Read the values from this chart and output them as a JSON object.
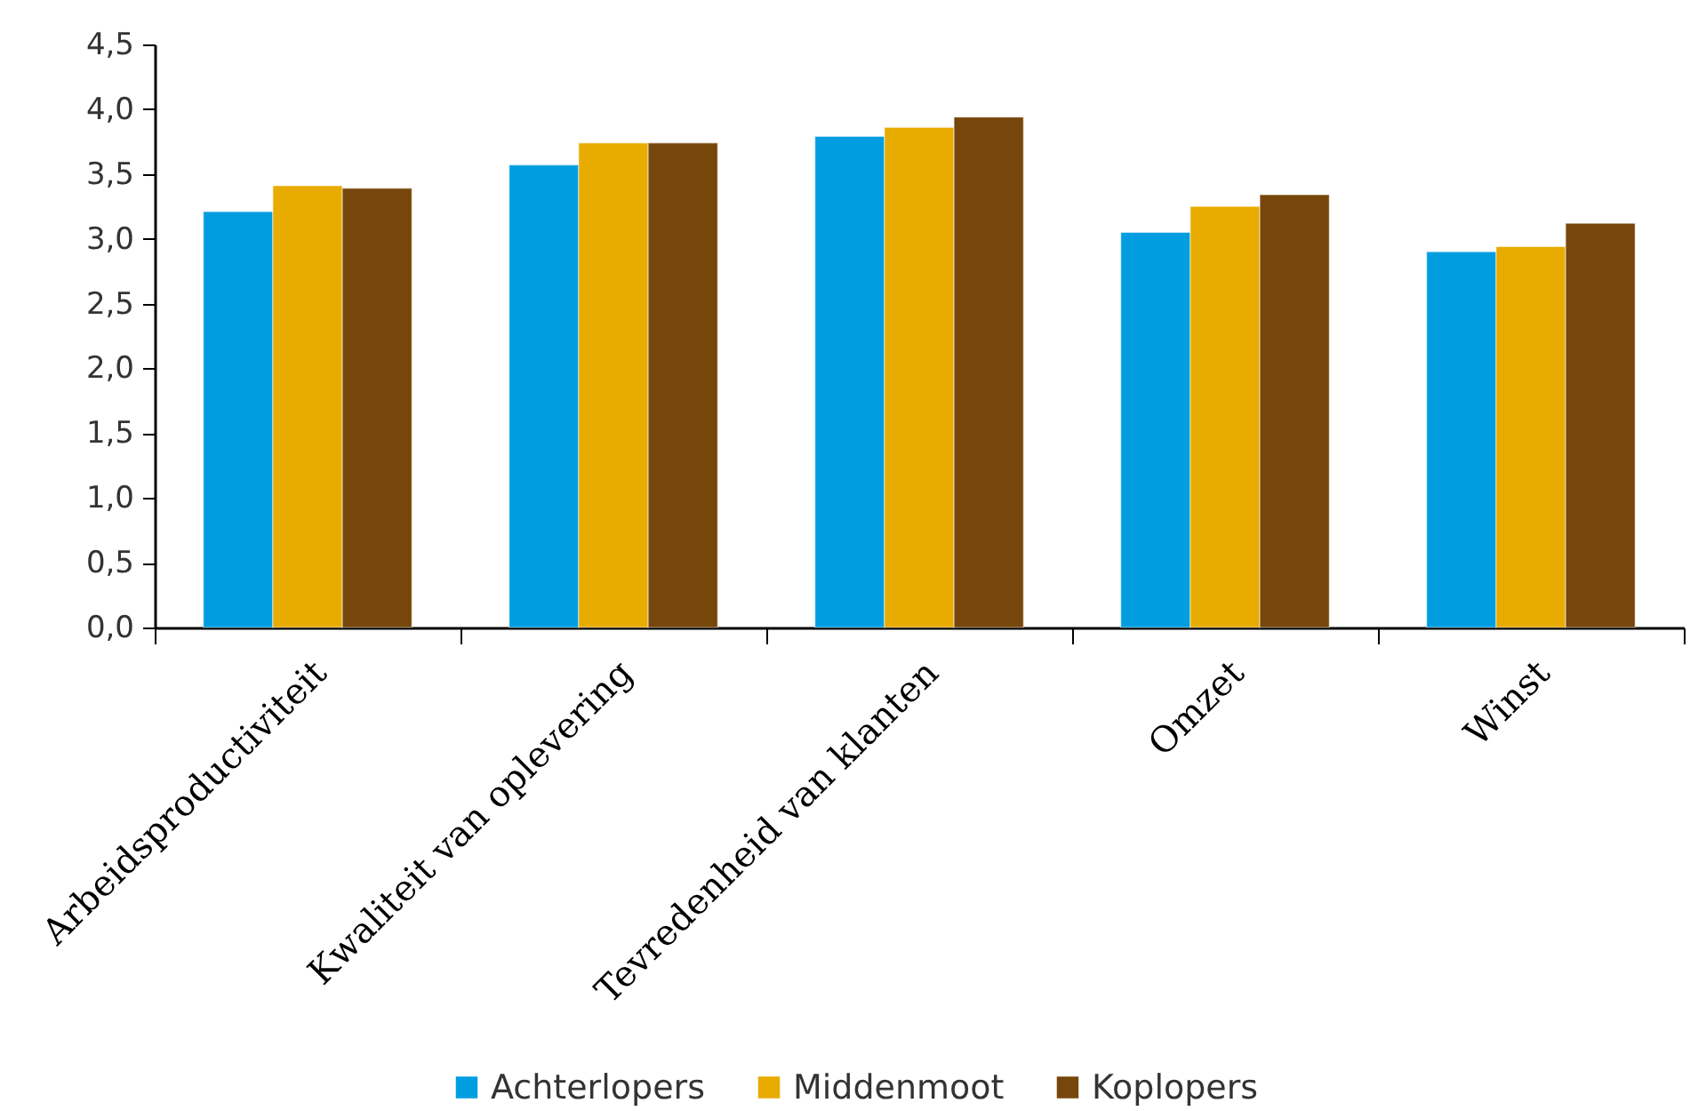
{
  "chart_data": {
    "type": "bar",
    "categories": [
      "Arbeidsproductiviteit",
      "Kwaliteit van oplevering",
      "Tevredenheid van klanten",
      "Omzet",
      "Winst"
    ],
    "series": [
      {
        "name": "Achterlopers",
        "color": "#009ee0",
        "values": [
          3.21,
          3.57,
          3.79,
          3.05,
          2.9
        ]
      },
      {
        "name": "Middenmoot",
        "color": "#e8ab00",
        "values": [
          3.41,
          3.74,
          3.86,
          3.25,
          2.94
        ]
      },
      {
        "name": "Koplopers",
        "color": "#77460b",
        "values": [
          3.39,
          3.74,
          3.94,
          3.34,
          3.12
        ]
      }
    ],
    "ylim": [
      0,
      4.5
    ],
    "yticks": [
      {
        "value": 0,
        "label": "0,0"
      },
      {
        "value": 0.5,
        "label": "0,5"
      },
      {
        "value": 1,
        "label": "1,0"
      },
      {
        "value": 1.5,
        "label": "1,5"
      },
      {
        "value": 2,
        "label": "2,0"
      },
      {
        "value": 2.5,
        "label": "2,5"
      },
      {
        "value": 3,
        "label": "3,0"
      },
      {
        "value": 3.5,
        "label": "3,5"
      },
      {
        "value": 4,
        "label": "4,0"
      },
      {
        "value": 4.5,
        "label": "4,5"
      }
    ],
    "grid": false,
    "legend": "bottom"
  }
}
